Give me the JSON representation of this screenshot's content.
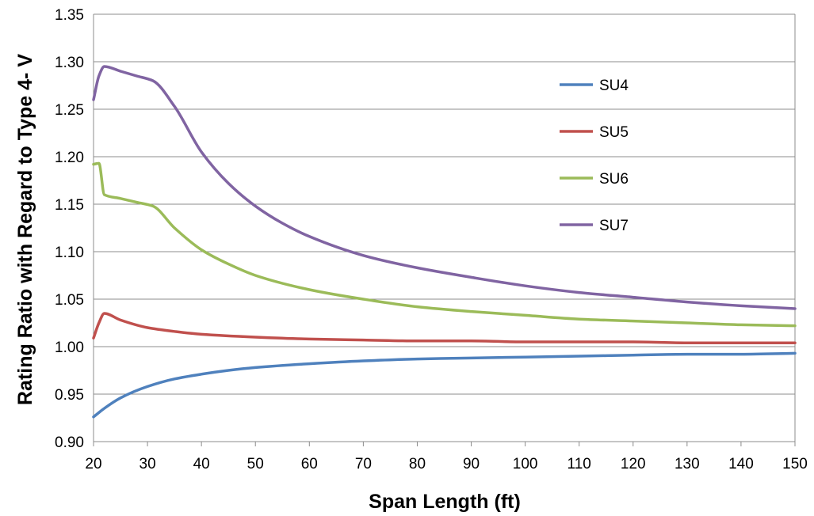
{
  "chart_data": {
    "type": "line",
    "title": "",
    "xlabel": "Span Length (ft)",
    "ylabel": "Rating Ratio with Regard to Type 4- V",
    "xlim": [
      20,
      150
    ],
    "ylim": [
      0.9,
      1.35
    ],
    "xticks": [
      20,
      30,
      40,
      50,
      60,
      70,
      80,
      90,
      100,
      110,
      120,
      130,
      140,
      150
    ],
    "yticks": [
      0.9,
      0.95,
      1.0,
      1.05,
      1.1,
      1.15,
      1.2,
      1.25,
      1.3,
      1.35
    ],
    "ytick_labels": [
      "0.90",
      "0.95",
      "1.00",
      "1.05",
      "1.10",
      "1.15",
      "1.20",
      "1.25",
      "1.30",
      "1.35"
    ],
    "grid": "horizontal",
    "legend_position": "right",
    "series": [
      {
        "name": "SU4",
        "color": "#4f81bd",
        "x": [
          20,
          22,
          25,
          30,
          35,
          40,
          45,
          50,
          60,
          70,
          80,
          90,
          100,
          110,
          120,
          130,
          140,
          150
        ],
        "y": [
          0.926,
          0.935,
          0.946,
          0.958,
          0.966,
          0.971,
          0.975,
          0.978,
          0.982,
          0.985,
          0.987,
          0.988,
          0.989,
          0.99,
          0.991,
          0.992,
          0.992,
          0.993
        ]
      },
      {
        "name": "SU5",
        "color": "#c0504d",
        "x": [
          20,
          21,
          22,
          25,
          30,
          35,
          40,
          50,
          60,
          70,
          80,
          90,
          100,
          110,
          120,
          130,
          140,
          150
        ],
        "y": [
          1.009,
          1.025,
          1.035,
          1.028,
          1.02,
          1.016,
          1.013,
          1.01,
          1.008,
          1.007,
          1.006,
          1.006,
          1.005,
          1.005,
          1.005,
          1.004,
          1.004,
          1.004
        ]
      },
      {
        "name": "SU6",
        "color": "#9bbb59",
        "x": [
          20,
          21,
          22,
          25,
          28,
          31,
          35,
          40,
          45,
          50,
          60,
          70,
          80,
          90,
          100,
          110,
          120,
          130,
          140,
          150
        ],
        "y": [
          1.192,
          1.193,
          1.16,
          1.156,
          1.152,
          1.148,
          1.125,
          1.102,
          1.087,
          1.075,
          1.06,
          1.05,
          1.042,
          1.037,
          1.033,
          1.029,
          1.027,
          1.025,
          1.023,
          1.022
        ]
      },
      {
        "name": "SU7",
        "color": "#8064a2",
        "x": [
          20,
          21,
          22,
          25,
          28,
          31,
          35,
          40,
          45,
          50,
          55,
          60,
          70,
          80,
          90,
          100,
          110,
          120,
          130,
          140,
          150
        ],
        "y": [
          1.26,
          1.285,
          1.295,
          1.29,
          1.285,
          1.28,
          1.253,
          1.205,
          1.172,
          1.148,
          1.13,
          1.116,
          1.096,
          1.083,
          1.073,
          1.064,
          1.057,
          1.052,
          1.047,
          1.043,
          1.04
        ]
      }
    ]
  }
}
